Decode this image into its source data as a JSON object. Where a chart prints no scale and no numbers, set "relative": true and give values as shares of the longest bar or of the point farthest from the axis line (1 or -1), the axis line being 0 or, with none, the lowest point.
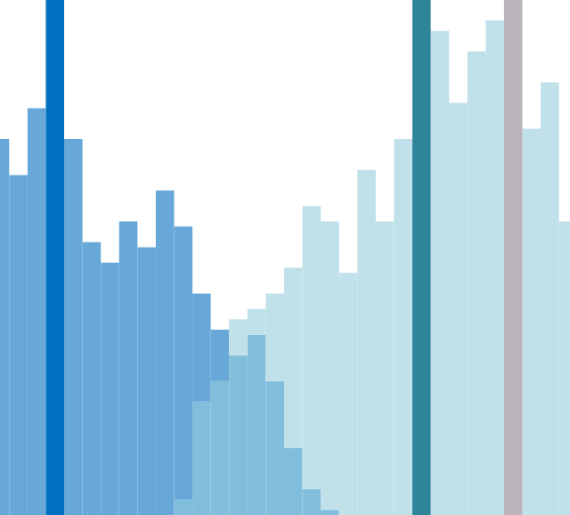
{
  "chart_data": {
    "type": "bar",
    "relative": true,
    "stacked": true,
    "categories": [
      null,
      null,
      null,
      null,
      null,
      null,
      null,
      null,
      null,
      null,
      null,
      null,
      null,
      null,
      null,
      null,
      null,
      null,
      null,
      null,
      null,
      null,
      null,
      null,
      null,
      null,
      null,
      null,
      null,
      null,
      null,
      null
    ],
    "series": [
      {
        "color": "#80bedc",
        "values": [
          0,
          0,
          0,
          0,
          0,
          0,
          0,
          0,
          0,
          0,
          0.03,
          0.22,
          0.26,
          0.31,
          0.35,
          0.26,
          0.13,
          0.05,
          0.01,
          0,
          0,
          0,
          0,
          0,
          0,
          0,
          0,
          0,
          0,
          0,
          0,
          0
        ]
      },
      {
        "color": "#68a8d8",
        "values": [
          0.73,
          0.66,
          0.79,
          0,
          0.73,
          0.53,
          0.49,
          0.57,
          0.52,
          0.63,
          0.53,
          0.21,
          0.1,
          0,
          0,
          0,
          0,
          0,
          0,
          0,
          0,
          0,
          0,
          0,
          0,
          0,
          0,
          0,
          0,
          0,
          0,
          0
        ]
      },
      {
        "color": "#c0e0ea",
        "values": [
          0,
          0,
          0,
          0,
          0,
          0,
          0,
          0,
          0,
          0,
          0,
          0,
          0,
          0.07,
          0.05,
          0.17,
          0.35,
          0.55,
          0.56,
          0.47,
          0.67,
          0.57,
          0.73,
          0,
          0.94,
          0.8,
          0.9,
          0.96,
          0,
          0.75,
          0.84,
          0.57
        ]
      },
      {
        "color": "#0070c0",
        "colors": [
          "#0070c0",
          "#0070c0",
          "#0070c0",
          "#0070c0",
          "#0070c0",
          "#0070c0",
          "#0070c0",
          "#0070c0",
          "#0070c0",
          "#0070c0",
          "#0070c0",
          "#0070c0",
          "#0070c0",
          "#0070c0",
          "#0070c0",
          "#0070c0",
          "#0070c0",
          "#0070c0",
          "#0070c0",
          "#0070c0",
          "#0070c0",
          "#0070c0",
          "#0070c0",
          "#2e8599",
          "#0070c0",
          "#0070c0",
          "#0070c0",
          "#0070c0",
          "#bcb4bd",
          "#0070c0",
          "#0070c0",
          "#0070c0"
        ],
        "values": [
          0,
          0,
          0,
          1,
          0,
          0,
          0,
          0,
          0,
          0,
          0,
          0,
          0,
          0,
          0,
          0,
          0,
          0,
          0,
          0,
          0,
          0,
          0,
          1,
          0,
          0,
          0,
          0,
          1,
          0,
          0,
          0
        ]
      }
    ]
  }
}
